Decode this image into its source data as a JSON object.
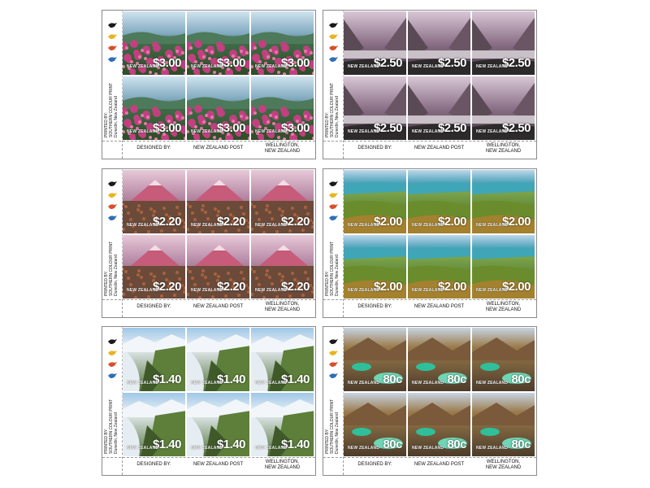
{
  "sheets": [
    {
      "id": "sheet-1",
      "value": "$3.00",
      "country": "NEW ZEALAND",
      "scene": "flowers"
    },
    {
      "id": "sheet-2",
      "value": "$2.50",
      "country": "NEW ZEALAND",
      "scene": "fiord"
    },
    {
      "id": "sheet-3",
      "value": "$2.20",
      "country": "NEW ZEALAND",
      "scene": "volcano"
    },
    {
      "id": "sheet-4",
      "value": "$2.00",
      "country": "NEW ZEALAND",
      "scene": "coast"
    },
    {
      "id": "sheet-5",
      "value": "$1.40",
      "country": "NEW ZEALAND",
      "scene": "glacier"
    },
    {
      "id": "sheet-6",
      "value": "80c",
      "country": "NEW ZEALAND",
      "scene": "lakes"
    }
  ],
  "printer": {
    "line1": "PRINTED BY:",
    "line2": "SOUTHERN COLOUR PRINT",
    "line3": "Dunedin, New Zealand"
  },
  "bottom": {
    "designed_by": "DESIGNED BY:",
    "designer": "NEW ZEALAND POST",
    "location_line1": "WELLINGTON,",
    "location_line2": "NEW ZEALAND"
  },
  "colors": {
    "bird_black": "#1a1a1a",
    "bird_yellow": "#e8b420",
    "bird_red": "#d6502a",
    "bird_blue": "#2f6fb5"
  },
  "icons": [
    "kiwi-bird-icon-black",
    "kiwi-bird-icon-yellow",
    "kiwi-bird-icon-red",
    "kiwi-bird-icon-blue"
  ]
}
